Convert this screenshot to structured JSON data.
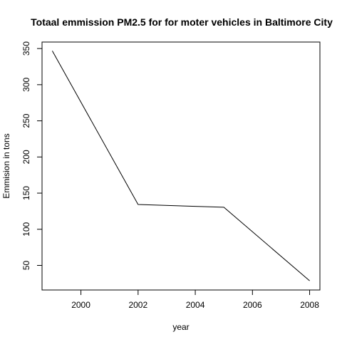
{
  "chart_data": {
    "type": "line",
    "title": "Totaal emmission PM2.5 for for moter vehicles in Baltimore City",
    "xlabel": "year",
    "ylabel": "Emmision in tons",
    "x": [
      1999,
      2002,
      2005,
      2008
    ],
    "series": [
      {
        "values": [
          346.82,
          134.31,
          130.43,
          28.76
        ]
      }
    ],
    "xlim": [
      1998.64,
      2008.36
    ],
    "ylim": [
      16.0,
      359.0
    ],
    "xticks": [
      2000,
      2002,
      2004,
      2006,
      2008
    ],
    "yticks": [
      50,
      100,
      150,
      200,
      250,
      300,
      350
    ],
    "grid": false,
    "line_color": "#000000"
  }
}
